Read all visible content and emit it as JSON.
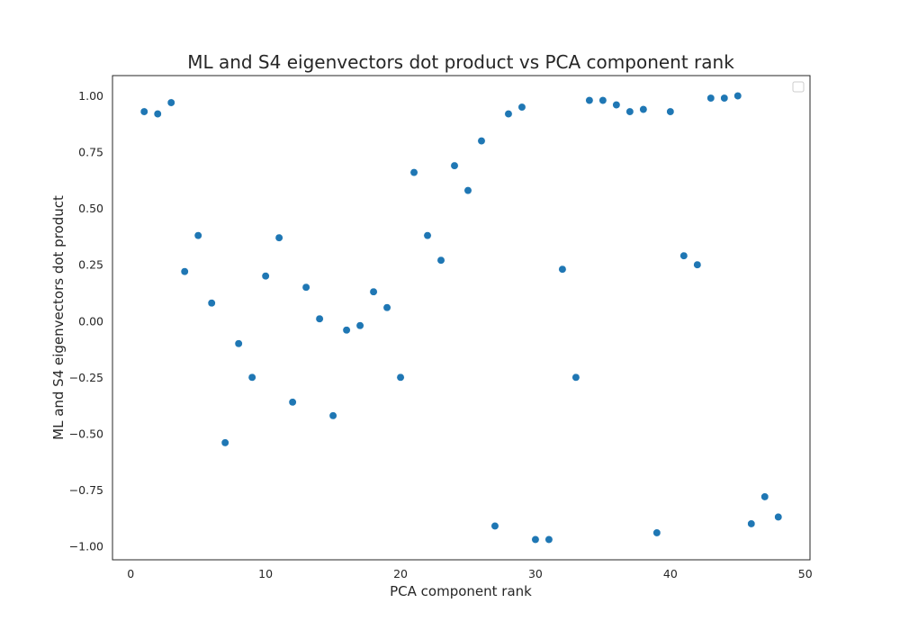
{
  "chart_data": {
    "type": "scatter",
    "title": "ML and S4 eigenvectors dot product vs PCA component rank",
    "xlabel": "PCA component rank",
    "ylabel": "ML and S4 eigenvectors dot product",
    "xlim": [
      -1.35,
      50.35
    ],
    "ylim": [
      -1.06,
      1.09
    ],
    "xticks": [
      0,
      10,
      20,
      30,
      40,
      50
    ],
    "xtick_labels": [
      "0",
      "10",
      "20",
      "30",
      "40",
      "50"
    ],
    "yticks": [
      -1.0,
      -0.75,
      -0.5,
      -0.25,
      0.0,
      0.25,
      0.5,
      0.75,
      1.0
    ],
    "ytick_labels": [
      "−1.00",
      "−0.75",
      "−0.50",
      "−0.25",
      "0.00",
      "0.25",
      "0.50",
      "0.75",
      "1.00"
    ],
    "grid": false,
    "legend": "top-right, empty",
    "point_color": "#1f77b4",
    "series": [
      {
        "x": [
          1,
          2,
          3,
          4,
          5,
          6,
          7,
          8,
          9,
          10,
          11,
          12,
          13,
          14,
          15,
          16,
          17,
          18,
          19,
          20,
          21,
          22,
          23,
          24,
          25,
          26,
          27,
          28,
          29,
          30,
          31,
          32,
          33,
          34,
          35,
          36,
          37,
          38,
          39,
          40,
          41,
          42,
          43,
          44,
          45,
          46,
          47,
          48
        ],
        "y": [
          0.93,
          0.92,
          0.97,
          0.22,
          0.38,
          0.08,
          -0.54,
          -0.1,
          -0.25,
          0.2,
          0.37,
          -0.36,
          0.15,
          0.01,
          -0.42,
          -0.04,
          -0.02,
          0.13,
          0.06,
          -0.25,
          0.66,
          0.38,
          0.27,
          0.69,
          0.58,
          0.8,
          -0.91,
          0.92,
          0.95,
          -0.97,
          -0.97,
          0.23,
          -0.25,
          0.98,
          0.98,
          0.96,
          0.93,
          0.94,
          -0.94,
          0.93,
          0.29,
          0.25,
          0.99,
          0.99,
          1.0,
          -0.9,
          -0.78,
          -0.87
        ]
      }
    ]
  }
}
